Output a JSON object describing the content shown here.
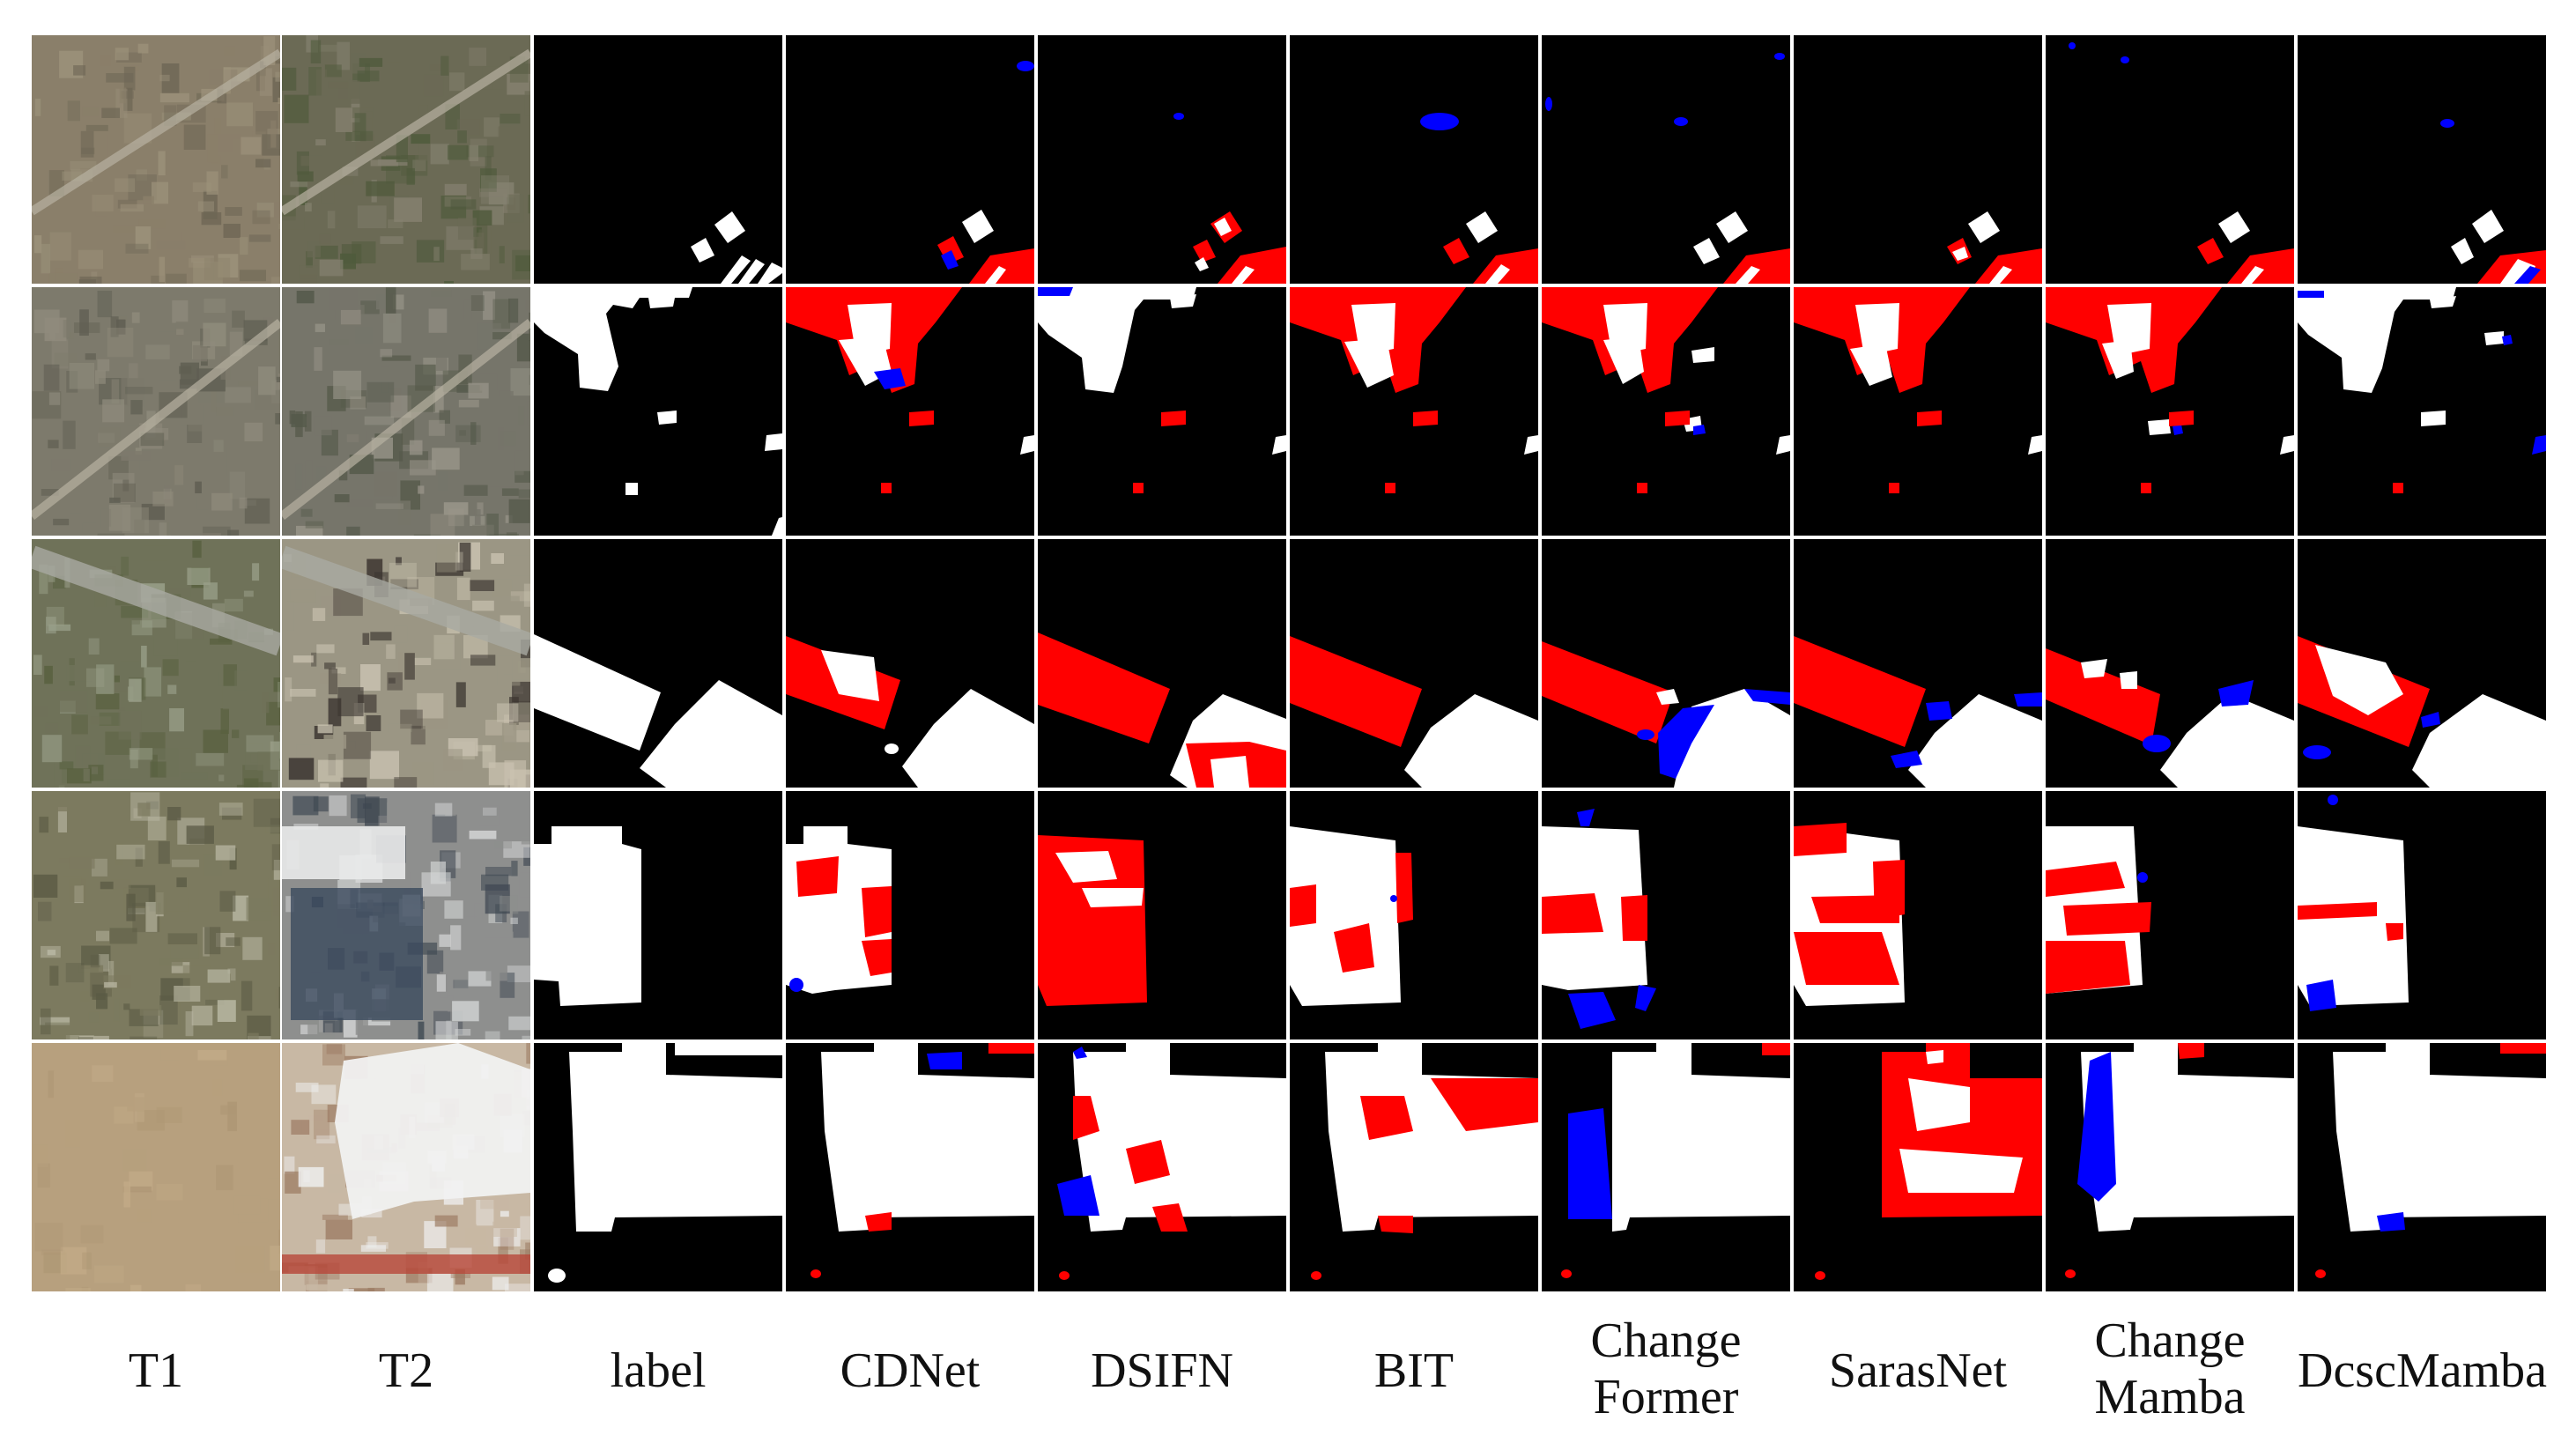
{
  "figure": {
    "columns": [
      {
        "id": "t1",
        "lines": [
          "T1"
        ],
        "kind": "photo"
      },
      {
        "id": "t2",
        "lines": [
          "T2"
        ],
        "kind": "photo"
      },
      {
        "id": "label",
        "lines": [
          "label"
        ],
        "kind": "mask"
      },
      {
        "id": "cdnet",
        "lines": [
          "CDNet"
        ],
        "kind": "mask"
      },
      {
        "id": "dsifn",
        "lines": [
          "DSIFN"
        ],
        "kind": "mask"
      },
      {
        "id": "bit",
        "lines": [
          "BIT"
        ],
        "kind": "mask"
      },
      {
        "id": "changeformer",
        "lines": [
          "Change",
          "Former"
        ],
        "kind": "mask"
      },
      {
        "id": "sarasnet",
        "lines": [
          "SarasNet"
        ],
        "kind": "mask"
      },
      {
        "id": "changemamba",
        "lines": [
          "Change",
          "Mamba"
        ],
        "kind": "mask"
      },
      {
        "id": "dcscmamba",
        "lines": [
          "DcscMamba"
        ],
        "kind": "mask"
      }
    ],
    "row_count": 5,
    "legend_colors": {
      "background": "#000000",
      "true_positive": "#ffffff",
      "false_negative": "#ff0000",
      "false_positive": "#0000ff"
    },
    "photo_palettes": [
      {
        "t1": [
          "#8a7f6a",
          "#6d6655",
          "#9c927b"
        ],
        "t2": [
          "#6b6a55",
          "#4f5a3c",
          "#858170"
        ]
      },
      {
        "t1": [
          "#7d7a6c",
          "#5f5e52",
          "#8f8b7c"
        ],
        "t2": [
          "#76756a",
          "#55594a",
          "#9a968a"
        ]
      },
      {
        "t1": [
          "#6f7259",
          "#58603f",
          "#9aa08a"
        ],
        "t2": [
          "#9b9684",
          "#3b3530",
          "#c9c2b0"
        ]
      },
      {
        "t1": [
          "#7c7a5f",
          "#5a5a44",
          "#b9b7a3"
        ],
        "t2": [
          "#8e8f8e",
          "#3f4852",
          "#d6d8d8"
        ]
      },
      {
        "t1": [
          "#b7a07e",
          "#ad9674",
          "#c2ab88"
        ],
        "t2": [
          "#c8b8a4",
          "#eeeeee",
          "#9d7c64"
        ]
      }
    ]
  }
}
